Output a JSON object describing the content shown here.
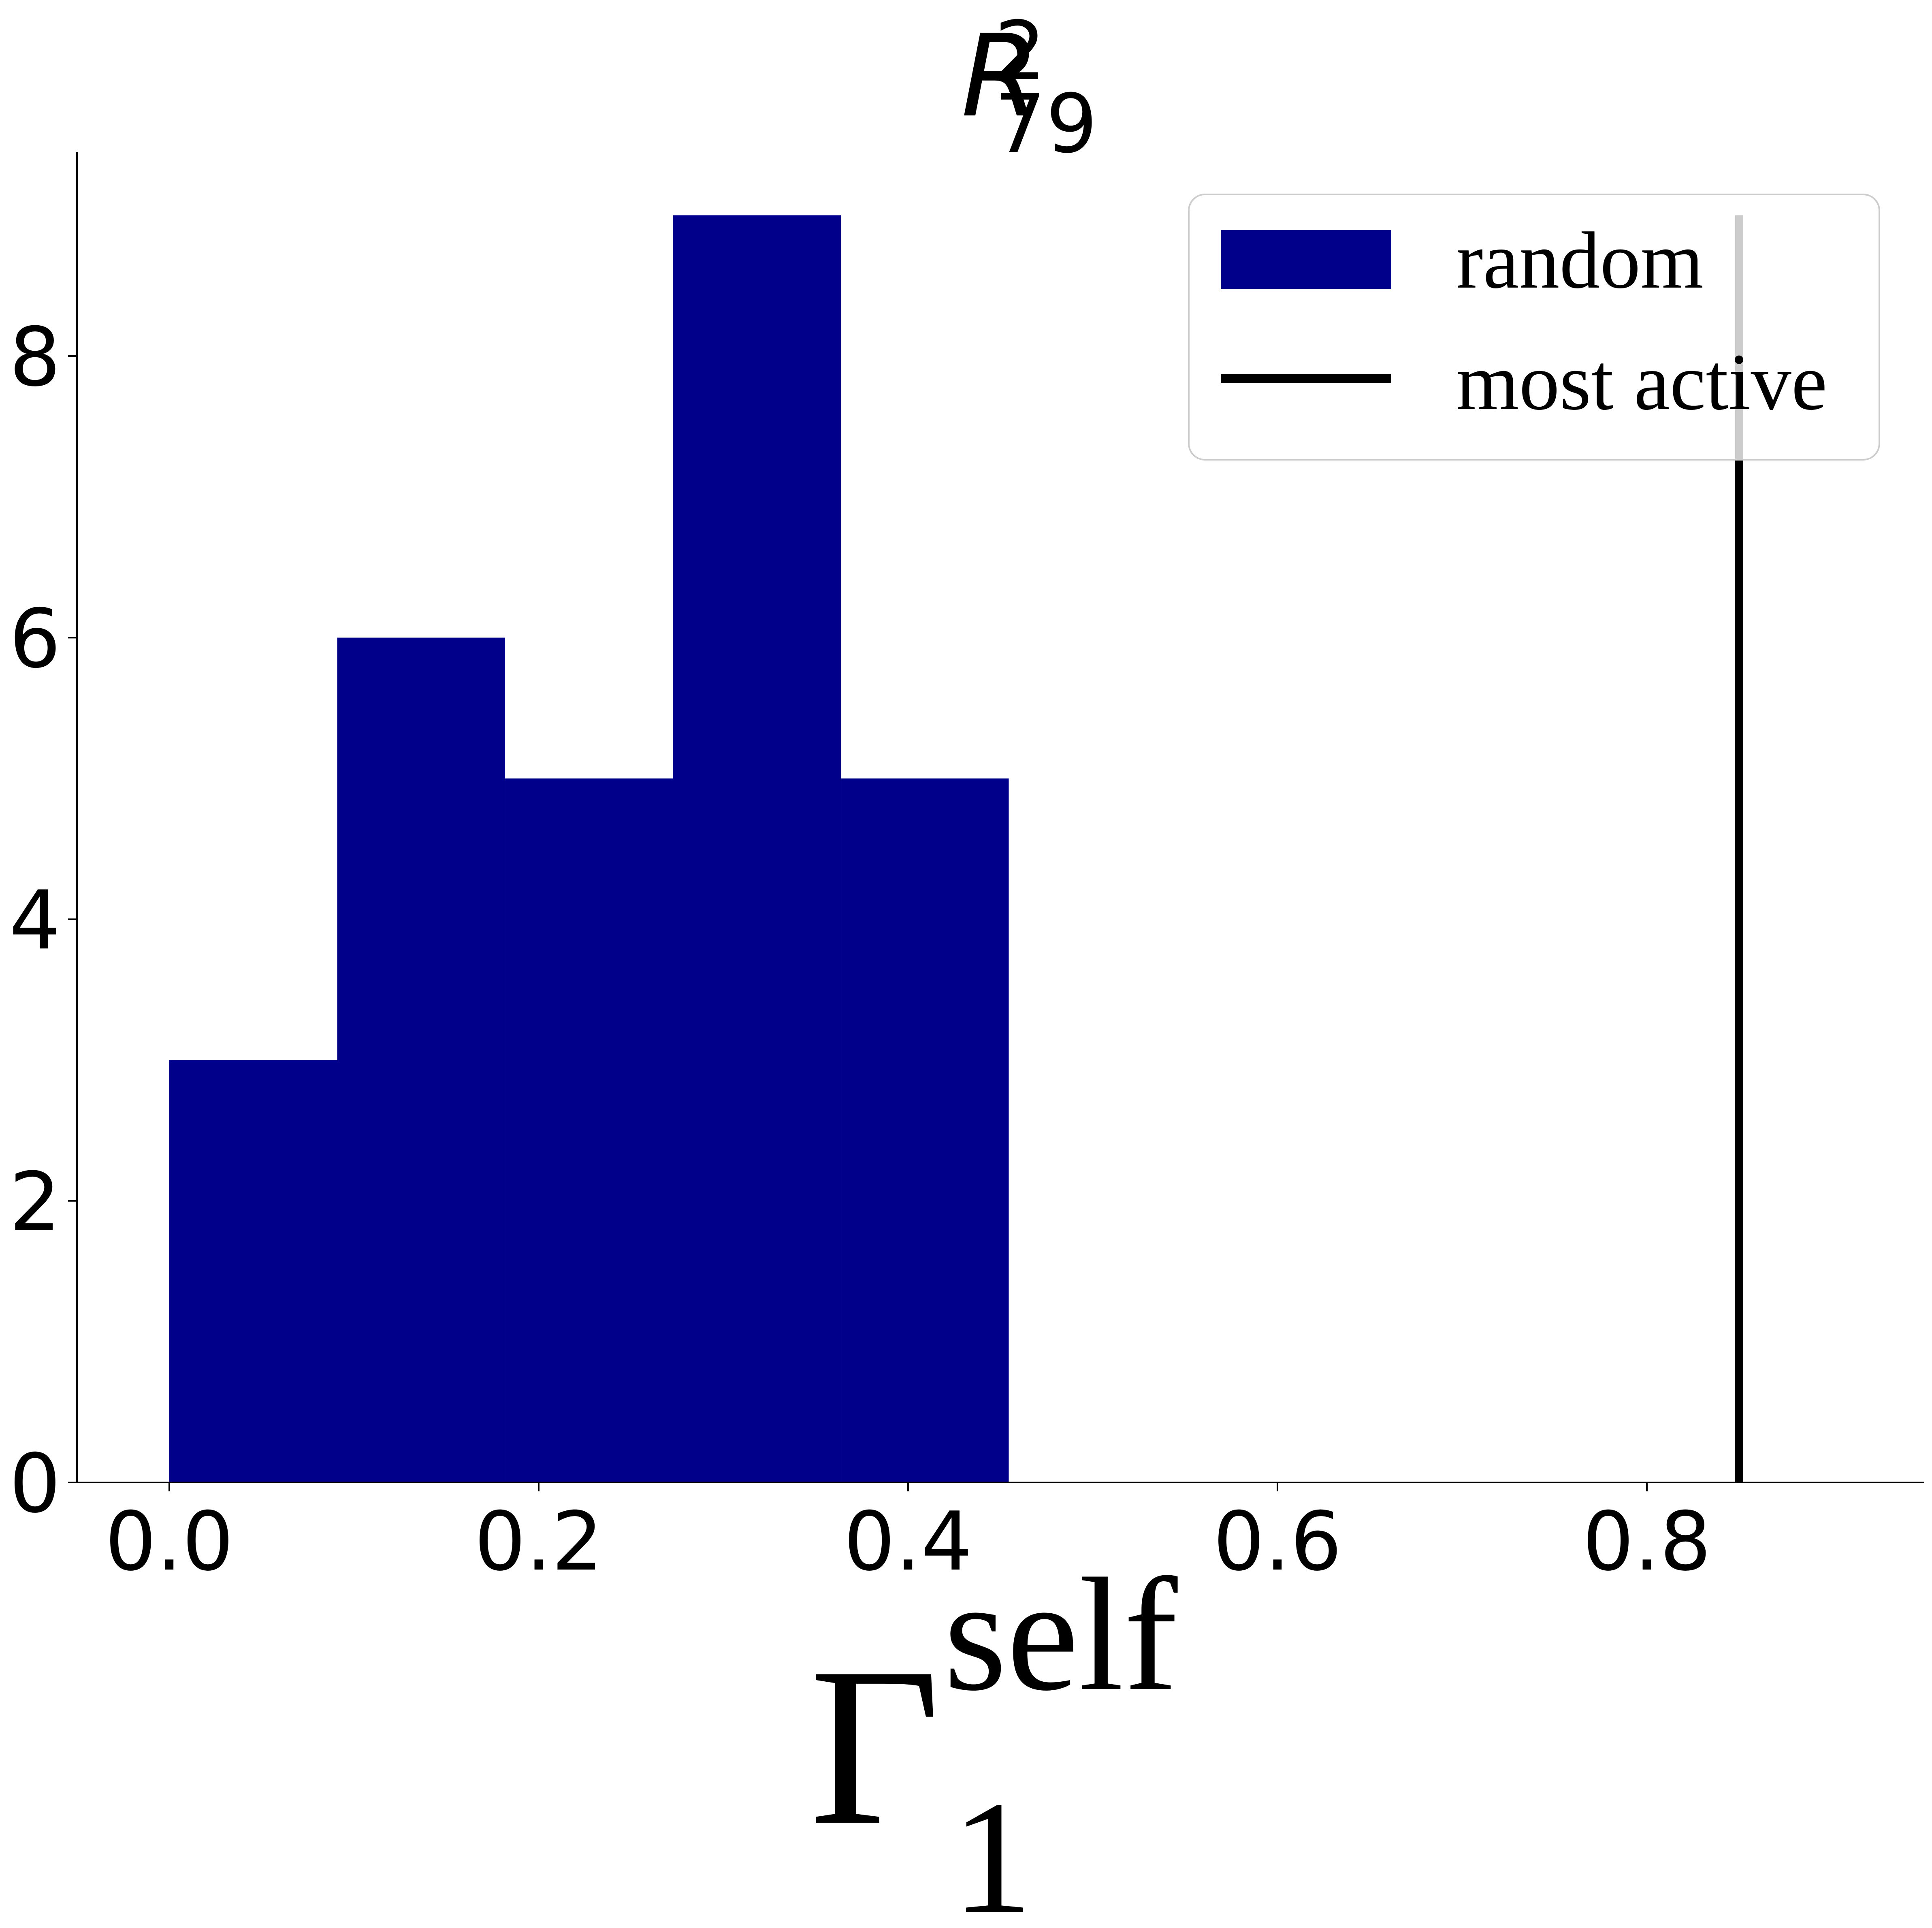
{
  "chart_data": {
    "type": "bar",
    "subtype": "histogram",
    "title": {
      "base": "R",
      "sup": "2",
      "sub": "79"
    },
    "xlabel": {
      "base": "Γ",
      "sup": "self",
      "sub": "1"
    },
    "ylabel": "",
    "bins": [
      {
        "x0": 0.0,
        "x1": 0.0909,
        "count": 3
      },
      {
        "x0": 0.0909,
        "x1": 0.1818,
        "count": 6
      },
      {
        "x0": 0.1818,
        "x1": 0.2727,
        "count": 5
      },
      {
        "x0": 0.2727,
        "x1": 0.3636,
        "count": 9
      },
      {
        "x0": 0.3636,
        "x1": 0.4545,
        "count": 5
      }
    ],
    "vline": {
      "x": 0.85,
      "ymin": 0,
      "ymax": 9
    },
    "xlim": [
      -0.05,
      0.95
    ],
    "ylim": [
      0,
      9.45
    ],
    "xticks": [
      "0.0",
      "0.2",
      "0.4",
      "0.6",
      "0.8"
    ],
    "yticks": [
      "0",
      "2",
      "4",
      "6",
      "8"
    ],
    "legend": {
      "placement": "top-right",
      "entries": [
        {
          "label": "random",
          "kind": "patch",
          "color": "#00008b"
        },
        {
          "label": "most active",
          "kind": "line",
          "color": "#000000"
        }
      ]
    },
    "bar_color": "#00008b",
    "line_color": "#000000",
    "grid": false
  }
}
